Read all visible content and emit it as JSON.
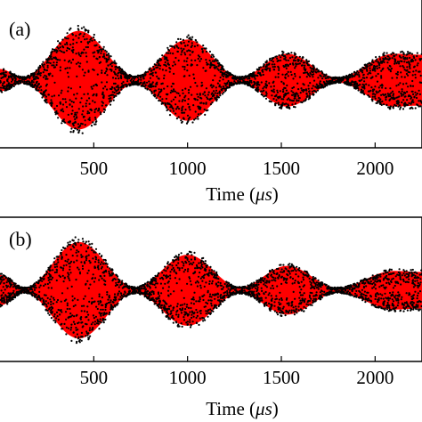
{
  "chart_data": [
    {
      "type": "scatter",
      "panel_label": "(a)",
      "xlabel": "Time (μs)",
      "xlabel_parts": {
        "prefix": "Time (",
        "unit": "μs",
        "suffix": ")"
      },
      "xlim": [
        0,
        2250
      ],
      "x_ticks": [
        500,
        1000,
        1500,
        2000
      ],
      "y_ticks_visible": false,
      "colors": {
        "dense_fill": "#ff0000",
        "points": "#000000"
      },
      "series": [
        {
          "kind": "envelope",
          "description_free": true,
          "envelope": [
            {
              "x": 0,
              "half": 0.22
            },
            {
              "x": 120,
              "half": 0.06
            },
            {
              "x": 420,
              "half": 0.97
            },
            {
              "x": 720,
              "half": 0.08
            },
            {
              "x": 1000,
              "half": 0.8
            },
            {
              "x": 1280,
              "half": 0.06
            },
            {
              "x": 1530,
              "half": 0.52
            },
            {
              "x": 1800,
              "half": 0.05
            },
            {
              "x": 2100,
              "half": 0.52
            },
            {
              "x": 2250,
              "half": 0.5
            }
          ]
        }
      ]
    },
    {
      "type": "scatter",
      "panel_label": "(b)",
      "xlabel": "Time (μs)",
      "xlabel_parts": {
        "prefix": "Time (",
        "unit": "μs",
        "suffix": ")"
      },
      "xlim": [
        0,
        2250
      ],
      "x_ticks": [
        500,
        1000,
        1500,
        2000
      ],
      "y_ticks_visible": false,
      "colors": {
        "dense_fill": "#ff0000",
        "points": "#000000"
      },
      "series": [
        {
          "kind": "envelope",
          "envelope": [
            {
              "x": 0,
              "half": 0.3
            },
            {
              "x": 130,
              "half": 0.05
            },
            {
              "x": 420,
              "half": 0.95
            },
            {
              "x": 720,
              "half": 0.06
            },
            {
              "x": 1000,
              "half": 0.7
            },
            {
              "x": 1280,
              "half": 0.06
            },
            {
              "x": 1530,
              "half": 0.48
            },
            {
              "x": 1800,
              "half": 0.05
            },
            {
              "x": 2100,
              "half": 0.38
            },
            {
              "x": 2250,
              "half": 0.36
            }
          ]
        }
      ]
    }
  ]
}
